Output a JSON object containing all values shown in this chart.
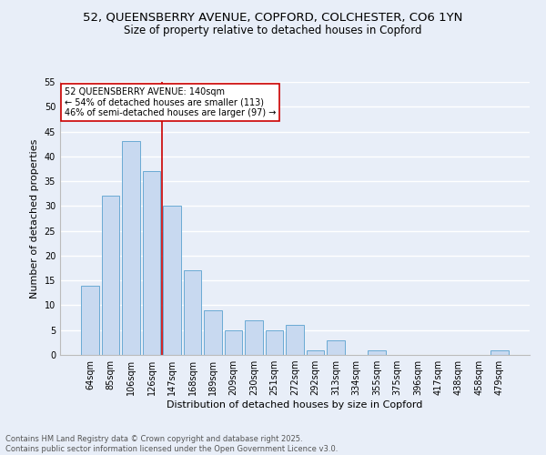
{
  "title1": "52, QUEENSBERRY AVENUE, COPFORD, COLCHESTER, CO6 1YN",
  "title2": "Size of property relative to detached houses in Copford",
  "xlabel": "Distribution of detached houses by size in Copford",
  "ylabel": "Number of detached properties",
  "categories": [
    "64sqm",
    "85sqm",
    "106sqm",
    "126sqm",
    "147sqm",
    "168sqm",
    "189sqm",
    "209sqm",
    "230sqm",
    "251sqm",
    "272sqm",
    "292sqm",
    "313sqm",
    "334sqm",
    "355sqm",
    "375sqm",
    "396sqm",
    "417sqm",
    "438sqm",
    "458sqm",
    "479sqm"
  ],
  "values": [
    14,
    32,
    43,
    37,
    30,
    17,
    9,
    5,
    7,
    5,
    6,
    1,
    3,
    0,
    1,
    0,
    0,
    0,
    0,
    0,
    1
  ],
  "bar_color": "#c8d9f0",
  "bar_edge_color": "#6aaad4",
  "vline_x_index": 3.5,
  "vline_color": "#cc0000",
  "annotation_text": "52 QUEENSBERRY AVENUE: 140sqm\n← 54% of detached houses are smaller (113)\n46% of semi-detached houses are larger (97) →",
  "annotation_box_color": "white",
  "annotation_box_edge": "#cc0000",
  "ylim": [
    0,
    55
  ],
  "yticks": [
    0,
    5,
    10,
    15,
    20,
    25,
    30,
    35,
    40,
    45,
    50,
    55
  ],
  "bg_color": "#e8eef8",
  "plot_bg_color": "#e8eef8",
  "footer": "Contains HM Land Registry data © Crown copyright and database right 2025.\nContains public sector information licensed under the Open Government Licence v3.0.",
  "grid_color": "#ffffff",
  "title_fontsize": 9.5,
  "subtitle_fontsize": 8.5,
  "axis_label_fontsize": 8,
  "tick_fontsize": 7,
  "annotation_fontsize": 7,
  "footer_fontsize": 6
}
